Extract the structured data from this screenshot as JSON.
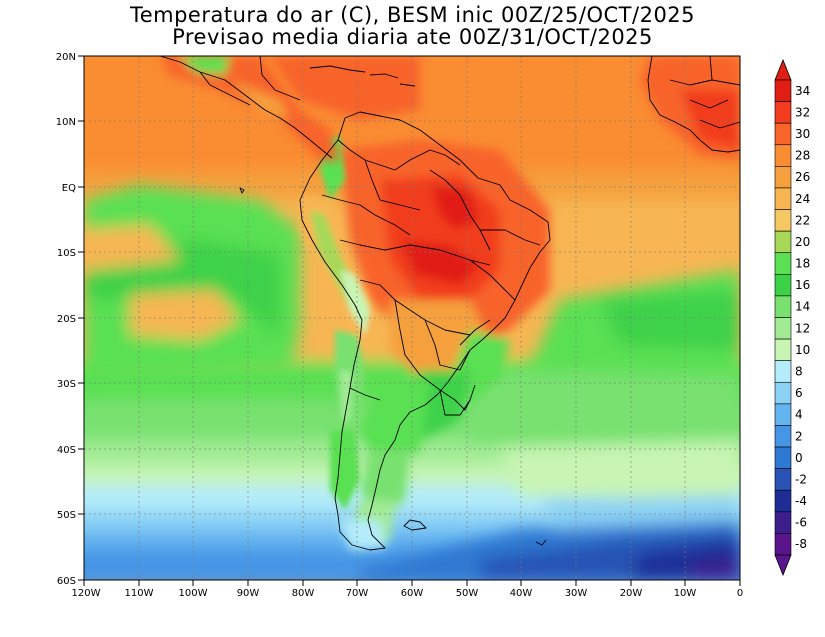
{
  "title_line1": "Temperatura do ar (C), BESM inic 00Z/25/OCT/2025",
  "title_line2": "Previsao media diaria ate 00Z/31/OCT/2025",
  "map": {
    "lon_ticks": [
      "120W",
      "110W",
      "100W",
      "90W",
      "80W",
      "70W",
      "60W",
      "50W",
      "40W",
      "30W",
      "20W",
      "10W",
      "0"
    ],
    "lat_ticks": [
      "20N",
      "10N",
      "EQ",
      "10S",
      "20S",
      "30S",
      "40S",
      "50S",
      "60S"
    ]
  },
  "colorbar": {
    "labels": [
      "34",
      "32",
      "30",
      "28",
      "26",
      "24",
      "22",
      "20",
      "18",
      "16",
      "14",
      "12",
      "10",
      "8",
      "6",
      "4",
      "2",
      "0",
      "-2",
      "-4",
      "-6",
      "-8"
    ],
    "colors": [
      "#e11e14",
      "#f23c1e",
      "#f8642a",
      "#fa8c32",
      "#f5a03c",
      "#f7b652",
      "#f5c864",
      "#a8d858",
      "#5ae052",
      "#3cd248",
      "#78e170",
      "#a0eb94",
      "#c8f5b4",
      "#b4ecfa",
      "#8cd2f5",
      "#64b4f0",
      "#4696e6",
      "#2d78d2",
      "#2852b4",
      "#1e2d96",
      "#3c1e8c",
      "#5a148c"
    ],
    "top_arrow_color": "#e11e14",
    "bottom_arrow_color": "#5a148c"
  }
}
